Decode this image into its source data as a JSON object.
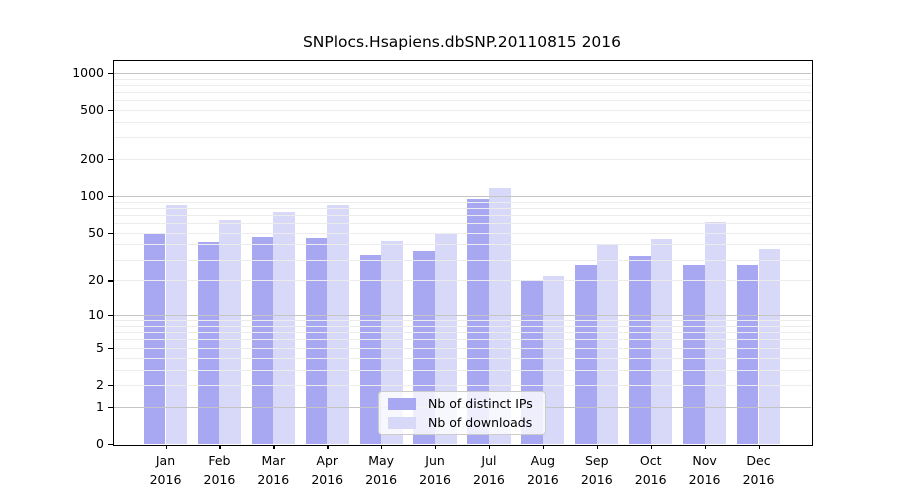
{
  "title": "SNPlocs.Hsapiens.dbSNP.20110815 2016",
  "legend": {
    "items": [
      {
        "label": "Nb of distinct IPs",
        "color": "#a8a8f2"
      },
      {
        "label": "Nb of downloads",
        "color": "#d8d8f8"
      }
    ],
    "position": "lower center"
  },
  "colors": {
    "ips_bar": "#a8a8f2",
    "downloads_bar": "#d8d8f8",
    "grid_minor": "#ececec",
    "grid_major": "#c4c4c4",
    "spine": "#000000"
  },
  "chart_data": {
    "type": "bar",
    "title": "SNPlocs.Hsapiens.dbSNP.20110815 2016",
    "categories": [
      "Jan",
      "Feb",
      "Mar",
      "Apr",
      "May",
      "Jun",
      "Jul",
      "Aug",
      "Sep",
      "Oct",
      "Nov",
      "Dec"
    ],
    "year_label": "2016",
    "series": [
      {
        "name": "Nb of distinct IPs",
        "color": "#a8a8f2",
        "values": [
          50,
          42,
          46,
          45,
          33,
          35,
          94,
          20,
          27,
          32,
          27,
          27
        ]
      },
      {
        "name": "Nb of downloads",
        "color": "#d8d8f8",
        "values": [
          85,
          64,
          74,
          84,
          43,
          49,
          116,
          22,
          40,
          44,
          61,
          37
        ]
      }
    ],
    "xlabel": "",
    "ylabel": "",
    "yscale": "log(1+x)",
    "ylim": [
      0,
      1270
    ],
    "yticks_labeled": [
      1000,
      500,
      200,
      100,
      50,
      20,
      10,
      5,
      2,
      1,
      0
    ],
    "yticks_major_grid": [
      1,
      10,
      100,
      1000
    ],
    "yticks_minor_grid": [
      2,
      3,
      4,
      5,
      6,
      7,
      8,
      9,
      20,
      30,
      40,
      50,
      60,
      70,
      80,
      90,
      200,
      300,
      400,
      500,
      600,
      700,
      800,
      900
    ],
    "grid": "both, drawn over bars",
    "legend_position": "lower center"
  }
}
